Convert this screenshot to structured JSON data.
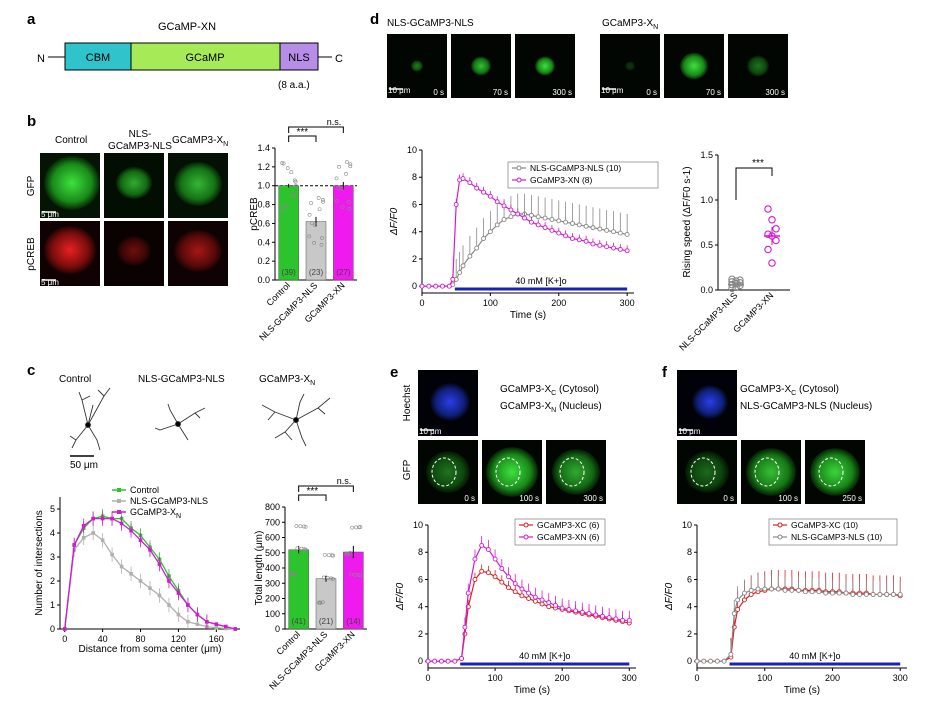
{
  "panel_letters": [
    "a",
    "b",
    "c",
    "d",
    "e",
    "f"
  ],
  "a": {
    "title": "GCaMP-XN",
    "n": "N",
    "c": "C",
    "cbm": "CBM",
    "gcamp": "GCaMP",
    "nls": "NLS",
    "note": "(8 a.a.)",
    "colors": {
      "cbm": "#2fc4cc",
      "gcamp": "#a7ea57",
      "nls": "#b68ee8"
    }
  },
  "b": {
    "col_labels": [
      "Control",
      "NLS-\nGCaMP3-NLS",
      "GCaMP3-XN"
    ],
    "row_labels": [
      "GFP",
      "pCREB"
    ],
    "scale": "5 μm",
    "chart_data": {
      "type": "bar",
      "categories": [
        "Control",
        "NLS-GCaMP3-NLS",
        "GCaMP3-XN"
      ],
      "values": [
        1.0,
        0.62,
        1.0
      ],
      "errors": [
        0.02,
        0.05,
        0.04
      ],
      "n": [
        "(39)",
        "(23)",
        "(27)"
      ],
      "ylabel": "pCREB",
      "ylim": [
        0,
        1.4
      ],
      "yticks": [
        0,
        0.2,
        0.4,
        0.6,
        0.8,
        1.0,
        1.2,
        1.4
      ],
      "colors": [
        "#2cc42c",
        "#c8c8c8",
        "#ee1aee"
      ],
      "sig": [
        "***",
        "n.s."
      ]
    }
  },
  "c": {
    "trace_labels": [
      "Control",
      "NLS-GCaMP3-NLS",
      "GCaMP3-XN"
    ],
    "scale": "50 μm",
    "sholl": {
      "type": "line",
      "xlabel": "Distance from soma center (μm)",
      "ylabel": "Number of intersections",
      "xlim": [
        -5,
        185
      ],
      "ylim": [
        0,
        5.5
      ],
      "xticks": [
        0,
        40,
        80,
        120,
        160
      ],
      "yticks": [
        0,
        1,
        2,
        3,
        4,
        5
      ],
      "x": [
        0,
        10,
        20,
        30,
        40,
        50,
        60,
        70,
        80,
        90,
        100,
        110,
        120,
        130,
        140,
        150,
        160,
        170,
        180
      ],
      "series": [
        {
          "name": "Control",
          "color": "#2cc42c",
          "values": [
            0,
            3.5,
            4.2,
            4.6,
            4.7,
            4.6,
            4.6,
            4.2,
            3.9,
            3.4,
            2.9,
            2.2,
            1.6,
            1.0,
            0.6,
            0.3,
            0.2,
            0.1,
            0
          ],
          "err": 0.3
        },
        {
          "name": "NLS-GCaMP3-NLS",
          "color": "#b0b0b0",
          "values": [
            0,
            3.3,
            3.8,
            4.0,
            3.7,
            3.1,
            2.6,
            2.3,
            2.0,
            1.7,
            1.4,
            1.0,
            0.6,
            0.3,
            0.2,
            0.1,
            0.05,
            0.02,
            0
          ],
          "err": 0.3
        },
        {
          "name": "GCaMP3-XN",
          "color": "#d21ad2",
          "values": [
            0,
            3.5,
            4.3,
            4.6,
            4.6,
            4.6,
            4.4,
            4.1,
            3.7,
            3.3,
            2.7,
            2.0,
            1.5,
            1.0,
            0.6,
            0.3,
            0.2,
            0.1,
            0
          ],
          "err": 0.3
        }
      ]
    },
    "chart_data": {
      "type": "bar",
      "categories": [
        "Control",
        "NLS-GCaMP3-NLS",
        "GCaMP3-XN"
      ],
      "values": [
        520,
        330,
        505
      ],
      "errors": [
        25,
        20,
        40
      ],
      "n": [
        "(41)",
        "(21)",
        "(14)"
      ],
      "ylabel": "Total length (μm)",
      "ylim": [
        0,
        800
      ],
      "yticks": [
        0,
        100,
        200,
        300,
        400,
        500,
        600,
        700,
        800
      ],
      "colors": [
        "#2cc42c",
        "#c8c8c8",
        "#ee1aee"
      ],
      "sig": [
        "***",
        "n.s."
      ]
    }
  },
  "d": {
    "img_titles": [
      "NLS-GCaMP3-NLS",
      "GCaMP3-XN"
    ],
    "times": [
      "0 s",
      "70 s",
      "300 s"
    ],
    "scale": "10 μm",
    "trace": {
      "type": "line",
      "xlabel": "Time (s)",
      "ylabel": "ΔF/F0",
      "xlim": [
        0,
        310
      ],
      "ylim": [
        -0.5,
        10
      ],
      "xticks": [
        0,
        100,
        200,
        300
      ],
      "yticks": [
        0,
        2,
        4,
        6,
        8,
        10
      ],
      "bar_label": "40 mM [K+]o",
      "bar_range": [
        48,
        300
      ],
      "x": [
        0,
        10,
        20,
        30,
        40,
        45,
        50,
        55,
        60,
        70,
        80,
        90,
        100,
        110,
        120,
        130,
        140,
        150,
        160,
        170,
        180,
        190,
        200,
        210,
        220,
        230,
        240,
        250,
        260,
        270,
        280,
        290,
        300
      ],
      "series": [
        {
          "name": "NLS-GCaMP3-NLS (10)",
          "color": "#888888",
          "values": [
            0,
            0,
            0,
            0,
            0,
            0.1,
            0.5,
            1.0,
            1.5,
            2.2,
            2.8,
            3.5,
            4.0,
            4.5,
            4.9,
            5.1,
            5.3,
            5.3,
            5.2,
            5.1,
            5.0,
            4.9,
            4.8,
            4.7,
            4.6,
            4.5,
            4.4,
            4.3,
            4.2,
            4.1,
            4.0,
            3.9,
            3.8
          ],
          "err": 1.5
        },
        {
          "name": "GCaMP3-XN (8)",
          "color": "#d21ad2",
          "values": [
            0,
            0,
            0,
            0,
            0,
            0.5,
            6.0,
            7.8,
            7.9,
            7.6,
            7.2,
            6.9,
            6.6,
            6.2,
            5.9,
            5.6,
            5.3,
            5.0,
            4.7,
            4.5,
            4.3,
            4.1,
            3.9,
            3.7,
            3.5,
            3.4,
            3.3,
            3.1,
            3.0,
            2.9,
            2.8,
            2.7,
            2.6
          ],
          "err": 0.4
        }
      ]
    },
    "chart_data": {
      "type": "scatter",
      "categories": [
        "NLS-GCaMP3-NLS",
        "GCaMP3-XN"
      ],
      "ylabel": "Rising speed (ΔF/F0 s-1)",
      "ylim": [
        0,
        1.5
      ],
      "yticks": [
        0,
        0.5,
        1.0,
        1.5
      ],
      "sig": "***",
      "means": [
        0.06,
        0.6
      ],
      "errors": [
        0.02,
        0.1
      ],
      "points": [
        [
          0.02,
          0.03,
          0.05,
          0.06,
          0.07,
          0.08,
          0.09,
          0.1,
          0.11,
          0.12
        ],
        [
          0.9,
          0.78,
          0.68,
          0.62,
          0.6,
          0.55,
          0.45,
          0.3
        ]
      ],
      "colors": [
        "#888888",
        "#d21ad2"
      ]
    }
  },
  "e": {
    "legend_top": [
      "GCaMP3-XC (Cytosol)",
      "GCaMP3-XN (Nucleus)"
    ],
    "row_labels": [
      "Hoechst",
      "GFP"
    ],
    "times": [
      "0 s",
      "100 s",
      "300 s"
    ],
    "scale": "10 μm",
    "trace": {
      "type": "line",
      "xlabel": "Time (s)",
      "ylabel": "ΔF/F0",
      "xlim": [
        0,
        310
      ],
      "ylim": [
        -0.5,
        10
      ],
      "xticks": [
        0,
        100,
        200,
        300
      ],
      "yticks": [
        0,
        2,
        4,
        6,
        8,
        10
      ],
      "bar_label": "40 mM [K+]o",
      "bar_range": [
        48,
        300
      ],
      "x": [
        0,
        10,
        20,
        30,
        40,
        50,
        55,
        60,
        70,
        80,
        90,
        100,
        110,
        120,
        130,
        140,
        150,
        160,
        170,
        180,
        190,
        200,
        210,
        220,
        230,
        240,
        250,
        260,
        270,
        280,
        290,
        300
      ],
      "series": [
        {
          "name": "GCaMP3-XC (6)",
          "color": "#d82020",
          "values": [
            0,
            0,
            0,
            0,
            0,
            0.2,
            2.0,
            4.0,
            6.0,
            6.6,
            6.5,
            6.2,
            5.8,
            5.4,
            5.1,
            4.8,
            4.6,
            4.4,
            4.2,
            4.0,
            3.9,
            3.8,
            3.7,
            3.6,
            3.5,
            3.4,
            3.3,
            3.2,
            3.1,
            3.0,
            2.9,
            2.8
          ],
          "err": 0.5
        },
        {
          "name": "GCaMP3-XN (6)",
          "color": "#d21ad2",
          "values": [
            0,
            0,
            0,
            0,
            0,
            0.2,
            2.5,
            5.0,
            7.5,
            8.5,
            8.2,
            7.5,
            6.8,
            6.2,
            5.7,
            5.3,
            5.0,
            4.7,
            4.5,
            4.3,
            4.1,
            3.9,
            3.8,
            3.7,
            3.6,
            3.5,
            3.4,
            3.3,
            3.2,
            3.1,
            3.0,
            3.0
          ],
          "err": 0.7
        }
      ]
    }
  },
  "f": {
    "legend_top": [
      "GCaMP3-XC (Cytosol)",
      "NLS-GCaMP3-NLS (Nucleus)"
    ],
    "times": [
      "0 s",
      "100 s",
      "250 s"
    ],
    "scale": "10 μm",
    "trace": {
      "type": "line",
      "xlabel": "Time (s)",
      "ylabel": "ΔF/F0",
      "xlim": [
        0,
        310
      ],
      "ylim": [
        -0.5,
        10
      ],
      "xticks": [
        0,
        100,
        200,
        300
      ],
      "yticks": [
        0,
        2,
        4,
        6,
        8,
        10
      ],
      "bar_label": "40 mM [K+]o",
      "bar_range": [
        48,
        300
      ],
      "x": [
        0,
        10,
        20,
        30,
        40,
        50,
        55,
        60,
        70,
        80,
        90,
        100,
        110,
        120,
        130,
        140,
        150,
        160,
        170,
        180,
        190,
        200,
        210,
        220,
        230,
        240,
        250,
        260,
        270,
        280,
        290,
        300
      ],
      "series": [
        {
          "name": "GCaMP3-XC (10)",
          "color": "#d82020",
          "values": [
            0,
            0,
            0,
            0,
            0,
            0.3,
            2.5,
            3.8,
            4.5,
            4.9,
            5.1,
            5.2,
            5.3,
            5.3,
            5.3,
            5.3,
            5.2,
            5.2,
            5.2,
            5.2,
            5.1,
            5.1,
            5.1,
            5.0,
            5.0,
            5.0,
            5.0,
            4.9,
            4.9,
            4.9,
            4.9,
            4.8
          ],
          "err": 1.4
        },
        {
          "name": "NLS-GCaMP3-NLS (10)",
          "color": "#888888",
          "values": [
            0,
            0,
            0,
            0,
            0,
            0.5,
            3.5,
            4.5,
            5.0,
            5.2,
            5.3,
            5.3,
            5.3,
            5.3,
            5.2,
            5.2,
            5.2,
            5.1,
            5.1,
            5.1,
            5.0,
            5.0,
            5.0,
            5.0,
            4.9,
            4.9,
            4.9,
            4.9,
            4.9,
            4.9,
            4.9,
            4.9
          ],
          "err": 1.0
        }
      ]
    }
  }
}
